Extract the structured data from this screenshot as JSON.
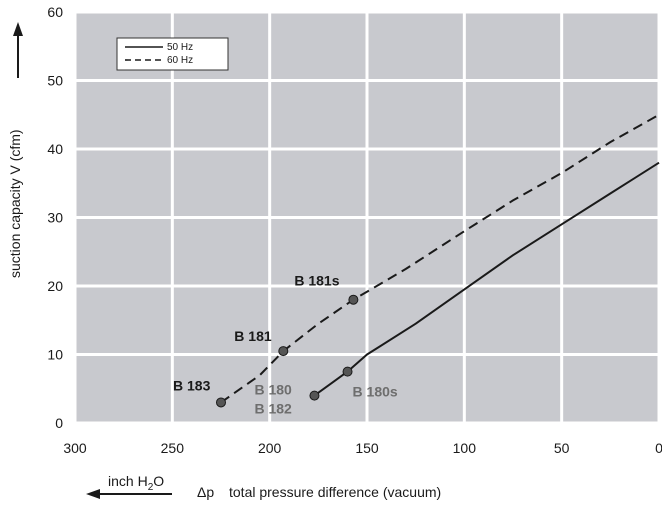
{
  "chart_data": {
    "type": "line",
    "ylabel": "suction capacity V (cfm)",
    "xlabel": "total pressure difference (vacuum)",
    "xlabel_symbol": "Δp",
    "xunit": "inch H",
    "xunit_sub": "2",
    "xunit_suffix": "O",
    "xlim": [
      300,
      0
    ],
    "ylim": [
      0,
      60
    ],
    "xticks": [
      "300",
      "250",
      "200",
      "150",
      "100",
      "50",
      "0"
    ],
    "yticks": [
      "0",
      "10",
      "20",
      "30",
      "40",
      "50",
      "60"
    ],
    "grid": true,
    "legend_position": "top-left",
    "series": [
      {
        "name": "50 Hz",
        "dash": "solid",
        "color": "#1a1a1a",
        "points": [
          [
            177,
            4
          ],
          [
            160,
            7.5
          ],
          [
            150,
            10
          ],
          [
            125,
            14.5
          ],
          [
            100,
            19.5
          ],
          [
            75,
            24.5
          ],
          [
            50,
            29
          ],
          [
            25,
            33.5
          ],
          [
            0,
            38
          ]
        ]
      },
      {
        "name": "60 Hz",
        "dash": "dashed",
        "color": "#1a1a1a",
        "points": [
          [
            225,
            3
          ],
          [
            205,
            7
          ],
          [
            193,
            10.5
          ],
          [
            175,
            14.5
          ],
          [
            157,
            18
          ],
          [
            130,
            22.5
          ],
          [
            100,
            28
          ],
          [
            75,
            32.5
          ],
          [
            50,
            36.5
          ],
          [
            25,
            41
          ],
          [
            0,
            45
          ]
        ]
      }
    ],
    "markers": [
      {
        "label": "B 183",
        "x": 225,
        "y": 3,
        "label_color": "#1a1a1a"
      },
      {
        "label": "B 181",
        "x": 193,
        "y": 10.5,
        "label_color": "#1a1a1a"
      },
      {
        "label": "B 181s",
        "x": 157,
        "y": 18,
        "label_color": "#1a1a1a"
      },
      {
        "label": "B 180s",
        "x": 160,
        "y": 7.5,
        "label_color": "#6e6e6e"
      }
    ],
    "extra_marker": {
      "x": 177,
      "y": 4,
      "labels": [
        "B 180",
        "B 182"
      ],
      "label_color": "#6e6e6e"
    }
  },
  "colors": {
    "plot_bg": "#c8c9ce",
    "grid": "#ffffff",
    "marker_fill": "#555555",
    "text": "#1a1a1a",
    "muted_text": "#6e6e6e"
  }
}
